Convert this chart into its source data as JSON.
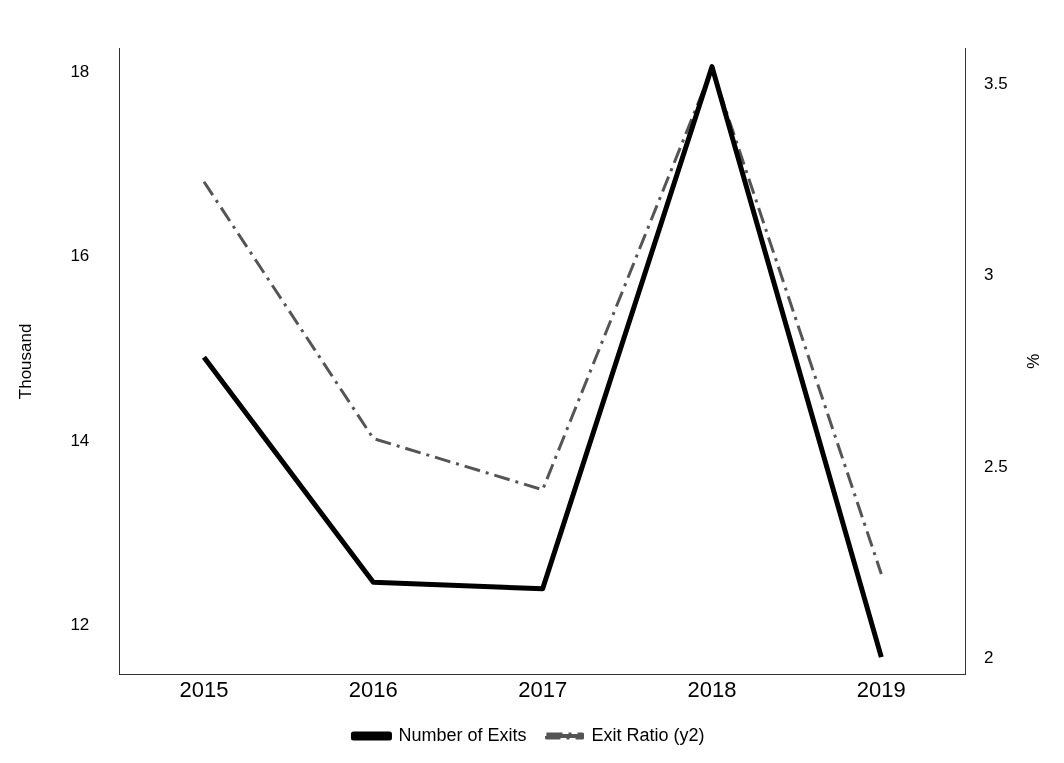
{
  "chart_data": {
    "type": "line",
    "categories": [
      "2015",
      "2016",
      "2017",
      "2018",
      "2019"
    ],
    "ylabel": "Thousand",
    "y2label": "%",
    "ylim": [
      11.47,
      18.26
    ],
    "yticks": [
      12,
      14,
      16,
      18
    ],
    "y2lim": [
      1.957,
      3.594
    ],
    "y2ticks": [
      2,
      2.5,
      3,
      3.5
    ],
    "series": [
      {
        "name": "Number of Exits",
        "color": "#000000",
        "values": [
          14.91,
          12.47,
          12.4,
          18.06,
          11.66
        ],
        "line_style": "solid"
      },
      {
        "name": "Exit Ratio (y2)",
        "color": "#555555",
        "values": [
          3.245,
          2.574,
          2.44,
          3.54,
          2.22
        ],
        "axis": "y2",
        "line_style": "dashed"
      }
    ],
    "grid": false,
    "legend": "bottom",
    "marker": "none"
  }
}
